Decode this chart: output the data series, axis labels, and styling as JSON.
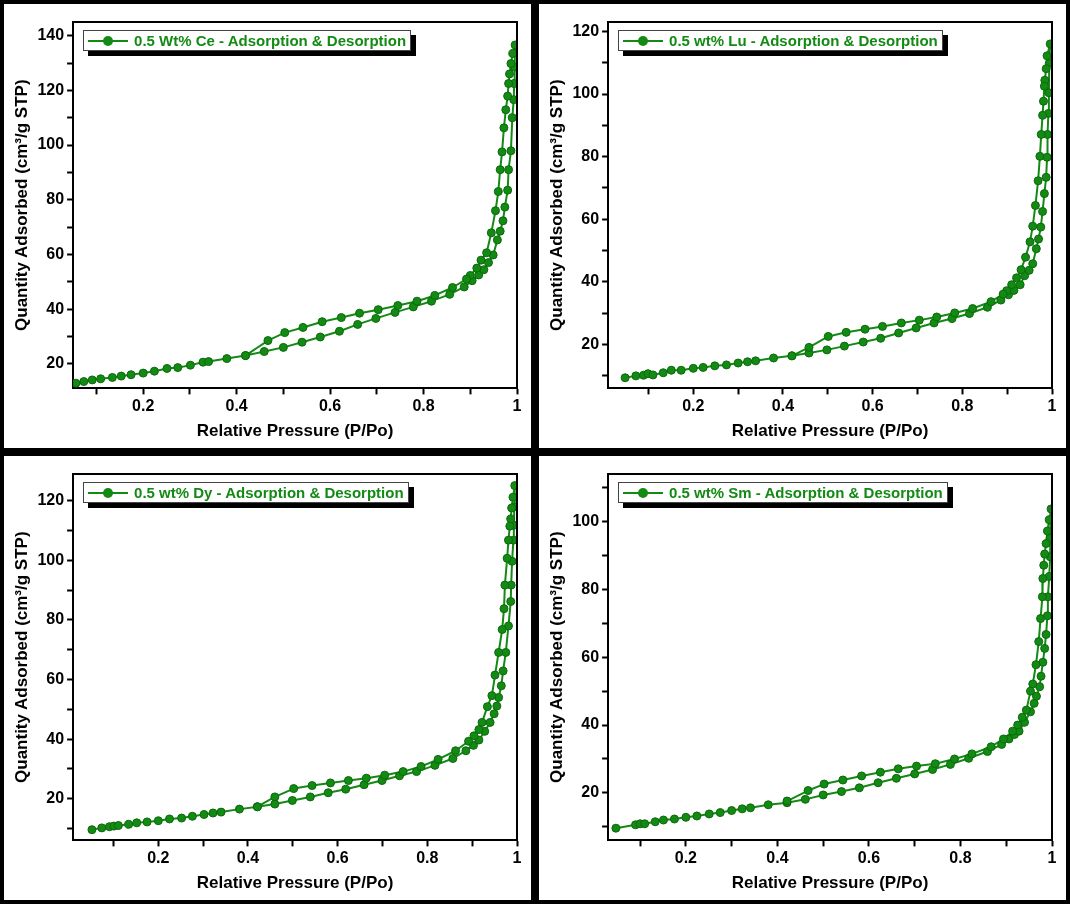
{
  "chart_data": [
    {
      "type": "line",
      "xlabel": "Relative Pressure (P/Po)",
      "ylabel": "Quantity Adsorbed (cm³/g STP)",
      "xlim": [
        0.05,
        1.0
      ],
      "ylim": [
        11,
        145
      ],
      "xticks": [
        {
          "value": 0.1,
          "label": null
        },
        0.2,
        {
          "value": 0.3,
          "label": null
        },
        0.4,
        {
          "value": 0.5,
          "label": null
        },
        0.6,
        {
          "value": 0.7,
          "label": null
        },
        0.8,
        {
          "value": 0.9,
          "label": null
        },
        1.0
      ],
      "yticks": [
        20,
        {
          "value": 30,
          "label": null
        },
        40,
        {
          "value": 50,
          "label": null
        },
        60,
        {
          "value": 70,
          "label": null
        },
        80,
        {
          "value": 90,
          "label": null
        },
        100,
        {
          "value": 110,
          "label": null
        },
        120,
        {
          "value": 130,
          "label": null
        },
        140
      ],
      "grid": false,
      "legend": "top left",
      "marker": "circle",
      "line_style": "solid",
      "series": [
        {
          "name": "0.5 Wt% Ce - Adsorption & Desorption",
          "color": "#138a13",
          "x": [
            0.056,
            0.073,
            0.091,
            0.109,
            0.134,
            0.153,
            0.174,
            0.2,
            0.224,
            0.251,
            0.274,
            0.301,
            0.328,
            0.34,
            0.379,
            0.419,
            0.459,
            0.5,
            0.54,
            0.579,
            0.62,
            0.659,
            0.698,
            0.739,
            0.778,
            0.817,
            0.856,
            0.887,
            0.904,
            0.918,
            0.929,
            0.939,
            0.949,
            0.958,
            0.964,
            0.97,
            0.974,
            0.98,
            0.982,
            0.987,
            0.99,
            0.993,
            0.994,
            0.995,
            0.996,
            0.991,
            0.987,
            0.984,
            0.982,
            0.98,
            0.976,
            0.972,
            0.968,
            0.964,
            0.96,
            0.954,
            0.945,
            0.935,
            0.923,
            0.914,
            0.9,
            0.892,
            0.862,
            0.824,
            0.786,
            0.745,
            0.703,
            0.663,
            0.624,
            0.583,
            0.542,
            0.503,
            0.467,
            0.419
          ],
          "values": [
            12.9,
            13.5,
            14.1,
            14.5,
            15,
            15.5,
            16,
            16.6,
            17.3,
            18.3,
            18.6,
            19.5,
            20.6,
            20.8,
            21.9,
            23,
            24.5,
            26,
            27.9,
            29.8,
            31.9,
            34.4,
            36.6,
            38.8,
            40.8,
            42.9,
            45.4,
            48.1,
            50.4,
            52.5,
            54.4,
            57,
            59.8,
            65.3,
            68.5,
            72.3,
            77.3,
            83.5,
            91,
            97.9,
            110,
            116.6,
            122.5,
            128.5,
            136.6,
            133.5,
            129.8,
            126,
            122.5,
            117.9,
            112.9,
            106.3,
            97.5,
            91,
            83,
            76,
            67.9,
            60.6,
            57.9,
            55,
            52.3,
            51,
            47.9,
            45,
            42.9,
            41.3,
            39.8,
            38.5,
            36.9,
            35.4,
            33.3,
            31.4,
            28.5,
            23
          ]
        }
      ]
    },
    {
      "type": "line",
      "xlabel": "Relative Pressure (P/Po)",
      "ylabel": "Quantity Adsorbed (cm³/g STP)",
      "xlim": [
        0.01,
        1.0
      ],
      "ylim": [
        6,
        123
      ],
      "xticks": [
        {
          "value": 0.1,
          "label": null
        },
        0.2,
        {
          "value": 0.3,
          "label": null
        },
        0.4,
        {
          "value": 0.5,
          "label": null
        },
        0.6,
        {
          "value": 0.7,
          "label": null
        },
        0.8,
        {
          "value": 0.9,
          "label": null
        },
        1.0
      ],
      "yticks": [
        {
          "value": 10,
          "label": null
        },
        20,
        {
          "value": 30,
          "label": null
        },
        40,
        {
          "value": 50,
          "label": null
        },
        60,
        {
          "value": 70,
          "label": null
        },
        80,
        {
          "value": 90,
          "label": null
        },
        100,
        {
          "value": 110,
          "label": null
        },
        120
      ],
      "grid": false,
      "legend": "top left",
      "marker": "circle",
      "line_style": "solid",
      "series": [
        {
          "name": "0.5 wt% Lu - Adsorption & Desorption",
          "color": "#138a13",
          "x": [
            0.048,
            0.072,
            0.089,
            0.099,
            0.11,
            0.133,
            0.151,
            0.173,
            0.2,
            0.222,
            0.248,
            0.274,
            0.3,
            0.321,
            0.339,
            0.379,
            0.42,
            0.458,
            0.498,
            0.537,
            0.579,
            0.618,
            0.658,
            0.697,
            0.737,
            0.777,
            0.816,
            0.856,
            0.886,
            0.903,
            0.915,
            0.929,
            0.939,
            0.949,
            0.957,
            0.965,
            0.97,
            0.975,
            0.979,
            0.983,
            0.987,
            0.989,
            0.99,
            0.992,
            0.993,
            0.994,
            0.996,
            0.989,
            0.987,
            0.984,
            0.983,
            0.981,
            0.979,
            0.976,
            0.973,
            0.969,
            0.963,
            0.957,
            0.951,
            0.941,
            0.931,
            0.921,
            0.91,
            0.899,
            0.891,
            0.864,
            0.823,
            0.783,
            0.743,
            0.704,
            0.664,
            0.622,
            0.583,
            0.541,
            0.501,
            0.458,
            0.42
          ],
          "values": [
            9.4,
            10,
            10.2,
            10.7,
            10.3,
            11,
            11.8,
            11.8,
            12.4,
            12.7,
            13.2,
            13.5,
            14.1,
            14.5,
            14.8,
            15.7,
            16.4,
            17.3,
            18.3,
            19.5,
            20.8,
            22,
            23.7,
            25.3,
            26.9,
            28.3,
            29.9,
            31.9,
            34.2,
            35.9,
            37.3,
            39.1,
            42,
            43.7,
            45.8,
            50.6,
            53.7,
            57.5,
            62.5,
            68.2,
            73.4,
            79.8,
            87.1,
            93.8,
            100.4,
            109.8,
            116,
            112.2,
            108.1,
            104.4,
            102.5,
            97.7,
            93.2,
            87.1,
            80.1,
            72.3,
            64.4,
            57.8,
            52.8,
            47.9,
            43.9,
            41.3,
            39.1,
            37.2,
            36.1,
            33.7,
            31.5,
            30.1,
            28.8,
            27.8,
            26.9,
            25.8,
            24.9,
            23.9,
            22.6,
            19.1,
            16.4
          ]
        }
      ]
    },
    {
      "type": "line",
      "xlabel": "Relative Pressure (P/Po)",
      "ylabel": "Quantity Adsorbed (cm³/g STP)",
      "xlim": [
        0.01,
        1.0
      ],
      "ylim": [
        6,
        129
      ],
      "xticks": [
        {
          "value": 0.1,
          "label": null
        },
        0.2,
        {
          "value": 0.3,
          "label": null
        },
        0.4,
        {
          "value": 0.5,
          "label": null
        },
        0.6,
        {
          "value": 0.7,
          "label": null
        },
        0.8,
        {
          "value": 0.9,
          "label": null
        },
        1.0
      ],
      "yticks": [
        {
          "value": 10,
          "label": null
        },
        20,
        {
          "value": 30,
          "label": null
        },
        40,
        {
          "value": 50,
          "label": null
        },
        60,
        {
          "value": 70,
          "label": null
        },
        80,
        {
          "value": 90,
          "label": null
        },
        100,
        {
          "value": 110,
          "label": null
        },
        120
      ],
      "grid": false,
      "legend": "top left",
      "marker": "circle",
      "line_style": "solid",
      "series": [
        {
          "name": "0.5 wt% Dy - Adsorption & Desorption",
          "color": "#138a13",
          "x": [
            0.052,
            0.074,
            0.091,
            0.101,
            0.111,
            0.134,
            0.152,
            0.175,
            0.2,
            0.225,
            0.252,
            0.276,
            0.302,
            0.322,
            0.34,
            0.381,
            0.421,
            0.46,
            0.499,
            0.539,
            0.579,
            0.618,
            0.659,
            0.699,
            0.738,
            0.776,
            0.817,
            0.857,
            0.886,
            0.903,
            0.915,
            0.928,
            0.94,
            0.949,
            0.955,
            0.959,
            0.965,
            0.969,
            0.975,
            0.981,
            0.986,
            0.987,
            0.989,
            0.992,
            0.993,
            0.994,
            0.995,
            0.991,
            0.988,
            0.986,
            0.984,
            0.981,
            0.978,
            0.973,
            0.971,
            0.967,
            0.959,
            0.951,
            0.944,
            0.934,
            0.922,
            0.915,
            0.904,
            0.892,
            0.863,
            0.824,
            0.786,
            0.746,
            0.705,
            0.664,
            0.624,
            0.584,
            0.543,
            0.502,
            0.46,
            0.421
          ],
          "values": [
            9.6,
            10.2,
            10.6,
            10.8,
            11,
            11.4,
            11.9,
            12.2,
            12.6,
            13.2,
            13.5,
            14.1,
            14.7,
            15.2,
            15.5,
            16.5,
            17.3,
            18.2,
            19.4,
            20.6,
            22,
            23.2,
            24.7,
            26.1,
            27.7,
            29.1,
            31.2,
            33.5,
            36.1,
            37.9,
            39.7,
            42.6,
            45.6,
            48.5,
            51.1,
            54,
            57.9,
            62.9,
            69.1,
            78,
            86.2,
            91.7,
            99.7,
            106.8,
            111.8,
            118,
            125.1,
            121.2,
            117.6,
            113.9,
            111.5,
            106.8,
            100.7,
            91.7,
            83.8,
            76.8,
            69.1,
            61.5,
            54.6,
            50.9,
            45.6,
            43.2,
            41.1,
            39.3,
            36.1,
            33.2,
            30.8,
            29.1,
            27.9,
            26.9,
            26.1,
            25.3,
            24.4,
            23.4,
            20.6,
            17.3
          ]
        }
      ]
    },
    {
      "type": "line",
      "xlabel": "Relative Pressure (P/Po)",
      "ylabel": "Quantity Adsorbed (cm³/g STP)",
      "xlim": [
        0.03,
        1.0
      ],
      "ylim": [
        6,
        114
      ],
      "xticks": [
        {
          "value": 0.1,
          "label": null
        },
        0.2,
        {
          "value": 0.3,
          "label": null
        },
        0.4,
        {
          "value": 0.5,
          "label": null
        },
        0.6,
        {
          "value": 0.7,
          "label": null
        },
        0.8,
        {
          "value": 0.9,
          "label": null
        },
        1.0
      ],
      "yticks": [
        {
          "value": 10,
          "label": null
        },
        20,
        {
          "value": 30,
          "label": null
        },
        40,
        {
          "value": 50,
          "label": null
        },
        60,
        {
          "value": 70,
          "label": null
        },
        80,
        {
          "value": 90,
          "label": null
        },
        100,
        {
          "value": 110,
          "label": null
        }
      ],
      "grid": false,
      "legend": "top left",
      "marker": "circle",
      "line_style": "solid",
      "series": [
        {
          "name": "0.5 wt% Sm - Adsorption & Desorption",
          "color": "#138a13",
          "x": [
            0.047,
            0.09,
            0.1,
            0.11,
            0.133,
            0.151,
            0.175,
            0.2,
            0.224,
            0.251,
            0.275,
            0.3,
            0.323,
            0.341,
            0.38,
            0.421,
            0.461,
            0.5,
            0.54,
            0.579,
            0.62,
            0.66,
            0.7,
            0.739,
            0.778,
            0.818,
            0.859,
            0.89,
            0.906,
            0.918,
            0.928,
            0.94,
            0.953,
            0.961,
            0.966,
            0.973,
            0.976,
            0.98,
            0.984,
            0.987,
            0.99,
            0.991,
            0.994,
            0.996,
            0.996,
            0.998,
            0.994,
            0.99,
            0.987,
            0.984,
            0.982,
            0.98,
            0.979,
            0.975,
            0.971,
            0.965,
            0.958,
            0.953,
            0.944,
            0.935,
            0.925,
            0.914,
            0.894,
            0.867,
            0.825,
            0.787,
            0.745,
            0.704,
            0.664,
            0.625,
            0.584,
            0.543,
            0.502,
            0.467,
            0.421
          ],
          "values": [
            9.6,
            10.6,
            10.9,
            10.9,
            11.5,
            12,
            12.3,
            12.8,
            13.2,
            13.8,
            14.2,
            14.8,
            15.3,
            15.6,
            16.5,
            17.1,
            18.1,
            19.4,
            20.4,
            21.5,
            23,
            24.3,
            25.6,
            26.9,
            28.4,
            30.2,
            32.2,
            34.3,
            35.9,
            37.2,
            38.2,
            40.8,
            43.9,
            46.4,
            48.5,
            51.3,
            54.4,
            58.5,
            62.6,
            66.7,
            72.2,
            77.8,
            83.8,
            89.6,
            95.1,
            103.7,
            100.5,
            97.2,
            93.5,
            90.4,
            87.1,
            83.2,
            77.8,
            71.4,
            64.6,
            57.8,
            52.1,
            50,
            44.4,
            42.3,
            40,
            38.2,
            35.9,
            33.6,
            31.5,
            30,
            28.6,
            27.9,
            27.1,
            26.1,
            25,
            23.8,
            22.6,
            20.7,
            17.6
          ]
        }
      ]
    }
  ]
}
